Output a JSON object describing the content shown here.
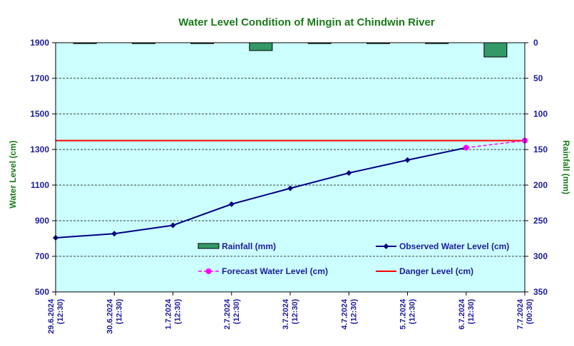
{
  "chart_data": {
    "type": "line",
    "title": "Water Level Condition of Mingin at Chindwin River",
    "ylabel_left": "Water Level (cm)",
    "ylabel_right": "Rainfall (mm)",
    "left_axis": {
      "min": 500,
      "max": 1900,
      "ticks": [
        500,
        700,
        900,
        1100,
        1300,
        1500,
        1700,
        1900
      ]
    },
    "right_axis": {
      "min": 0,
      "max": 350,
      "ticks": [
        0,
        50,
        100,
        150,
        200,
        250,
        300,
        350
      ],
      "inverted": true
    },
    "categories": [
      [
        "29.6.2024",
        "(12:30)"
      ],
      [
        "30.6.2024",
        "(12:30)"
      ],
      [
        "1.7.2024",
        "(12:30)"
      ],
      [
        "2.7.2024",
        "(12:30)"
      ],
      [
        "3.7.2024",
        "(12:30)"
      ],
      [
        "4.7.2024",
        "(12:30)"
      ],
      [
        "5.7.2024",
        "(12:30)"
      ],
      [
        "6.7.2024",
        "(12:30)"
      ],
      [
        "7.7.2024",
        "(00:30)"
      ]
    ],
    "series": [
      {
        "name": "Rainfall (mm)",
        "kind": "bar",
        "color": "#339966",
        "values": [
          0,
          0,
          1,
          11,
          0,
          0,
          0,
          20,
          null
        ]
      },
      {
        "name": "Observed Water Level (cm)",
        "kind": "line",
        "color": "#000080",
        "values": [
          804,
          827,
          874,
          993,
          1082,
          1168,
          1241,
          1310,
          null
        ]
      },
      {
        "name": "Forecast Water Level (cm)",
        "kind": "line",
        "dashed": true,
        "color": "#ff00ff",
        "values": [
          null,
          null,
          null,
          null,
          null,
          null,
          null,
          1310,
          1350
        ]
      },
      {
        "name": "Danger Level (cm)",
        "kind": "hline",
        "color": "#ff0000",
        "value": 1350
      }
    ],
    "grid": true,
    "legend": "inside-bottom",
    "plot_background": "#ccffff"
  }
}
